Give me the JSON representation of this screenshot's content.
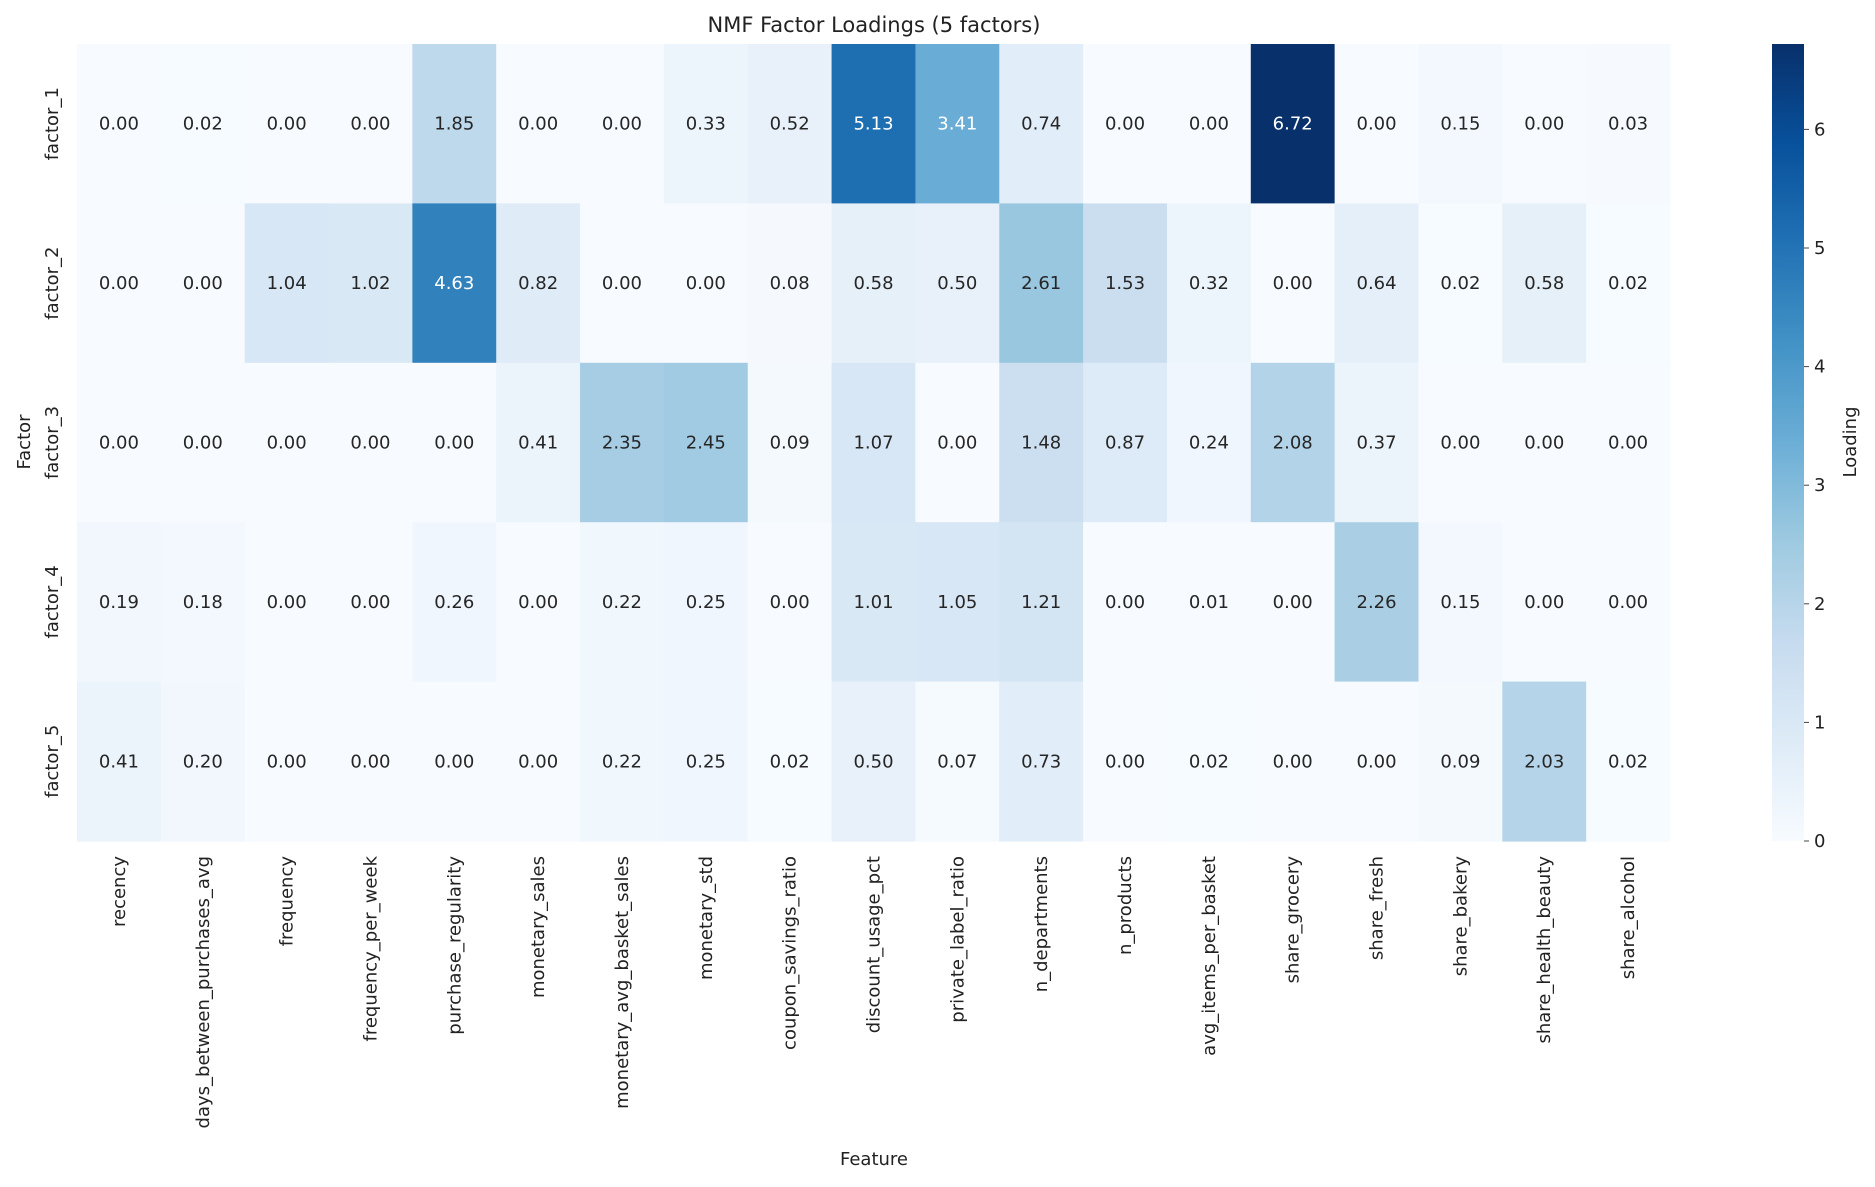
{
  "chart_data": {
    "type": "heatmap",
    "title": "NMF Factor Loadings (5 factors)",
    "xlabel": "Feature",
    "ylabel": "Factor",
    "colorbar_label": "Loading",
    "colormap": "Blues",
    "vmin": 0,
    "vmax": 6.72,
    "colorbar_ticks": [
      0,
      1,
      2,
      3,
      4,
      5,
      6
    ],
    "x_categories": [
      "recency",
      "days_between_purchases_avg",
      "frequency",
      "frequency_per_week",
      "purchase_regularity",
      "monetary_sales",
      "monetary_avg_basket_sales",
      "monetary_std",
      "coupon_savings_ratio",
      "discount_usage_pct",
      "private_label_ratio",
      "n_departments",
      "n_products",
      "avg_items_per_basket",
      "share_grocery",
      "share_fresh",
      "share_bakery",
      "share_health_beauty",
      "share_alcohol"
    ],
    "y_categories": [
      "factor_1",
      "factor_2",
      "factor_3",
      "factor_4",
      "factor_5"
    ],
    "values": [
      [
        0.0,
        0.02,
        0.0,
        0.0,
        1.85,
        0.0,
        0.0,
        0.33,
        0.52,
        5.13,
        3.41,
        0.74,
        0.0,
        0.0,
        6.72,
        0.0,
        0.15,
        0.0,
        0.03
      ],
      [
        0.0,
        0.0,
        1.04,
        1.02,
        4.63,
        0.82,
        0.0,
        0.0,
        0.08,
        0.58,
        0.5,
        2.61,
        1.53,
        0.32,
        0.0,
        0.64,
        0.02,
        0.58,
        0.02
      ],
      [
        0.0,
        0.0,
        0.0,
        0.0,
        0.0,
        0.41,
        2.35,
        2.45,
        0.09,
        1.07,
        0.0,
        1.48,
        0.87,
        0.24,
        2.08,
        0.37,
        0.0,
        0.0,
        0.0
      ],
      [
        0.19,
        0.18,
        0.0,
        0.0,
        0.26,
        0.0,
        0.22,
        0.25,
        0.0,
        1.01,
        1.05,
        1.21,
        0.0,
        0.01,
        0.0,
        2.26,
        0.15,
        0.0,
        0.0
      ],
      [
        0.41,
        0.2,
        0.0,
        0.0,
        0.0,
        0.0,
        0.22,
        0.25,
        0.02,
        0.5,
        0.07,
        0.73,
        0.0,
        0.02,
        0.0,
        0.0,
        0.09,
        2.03,
        0.02
      ]
    ]
  }
}
